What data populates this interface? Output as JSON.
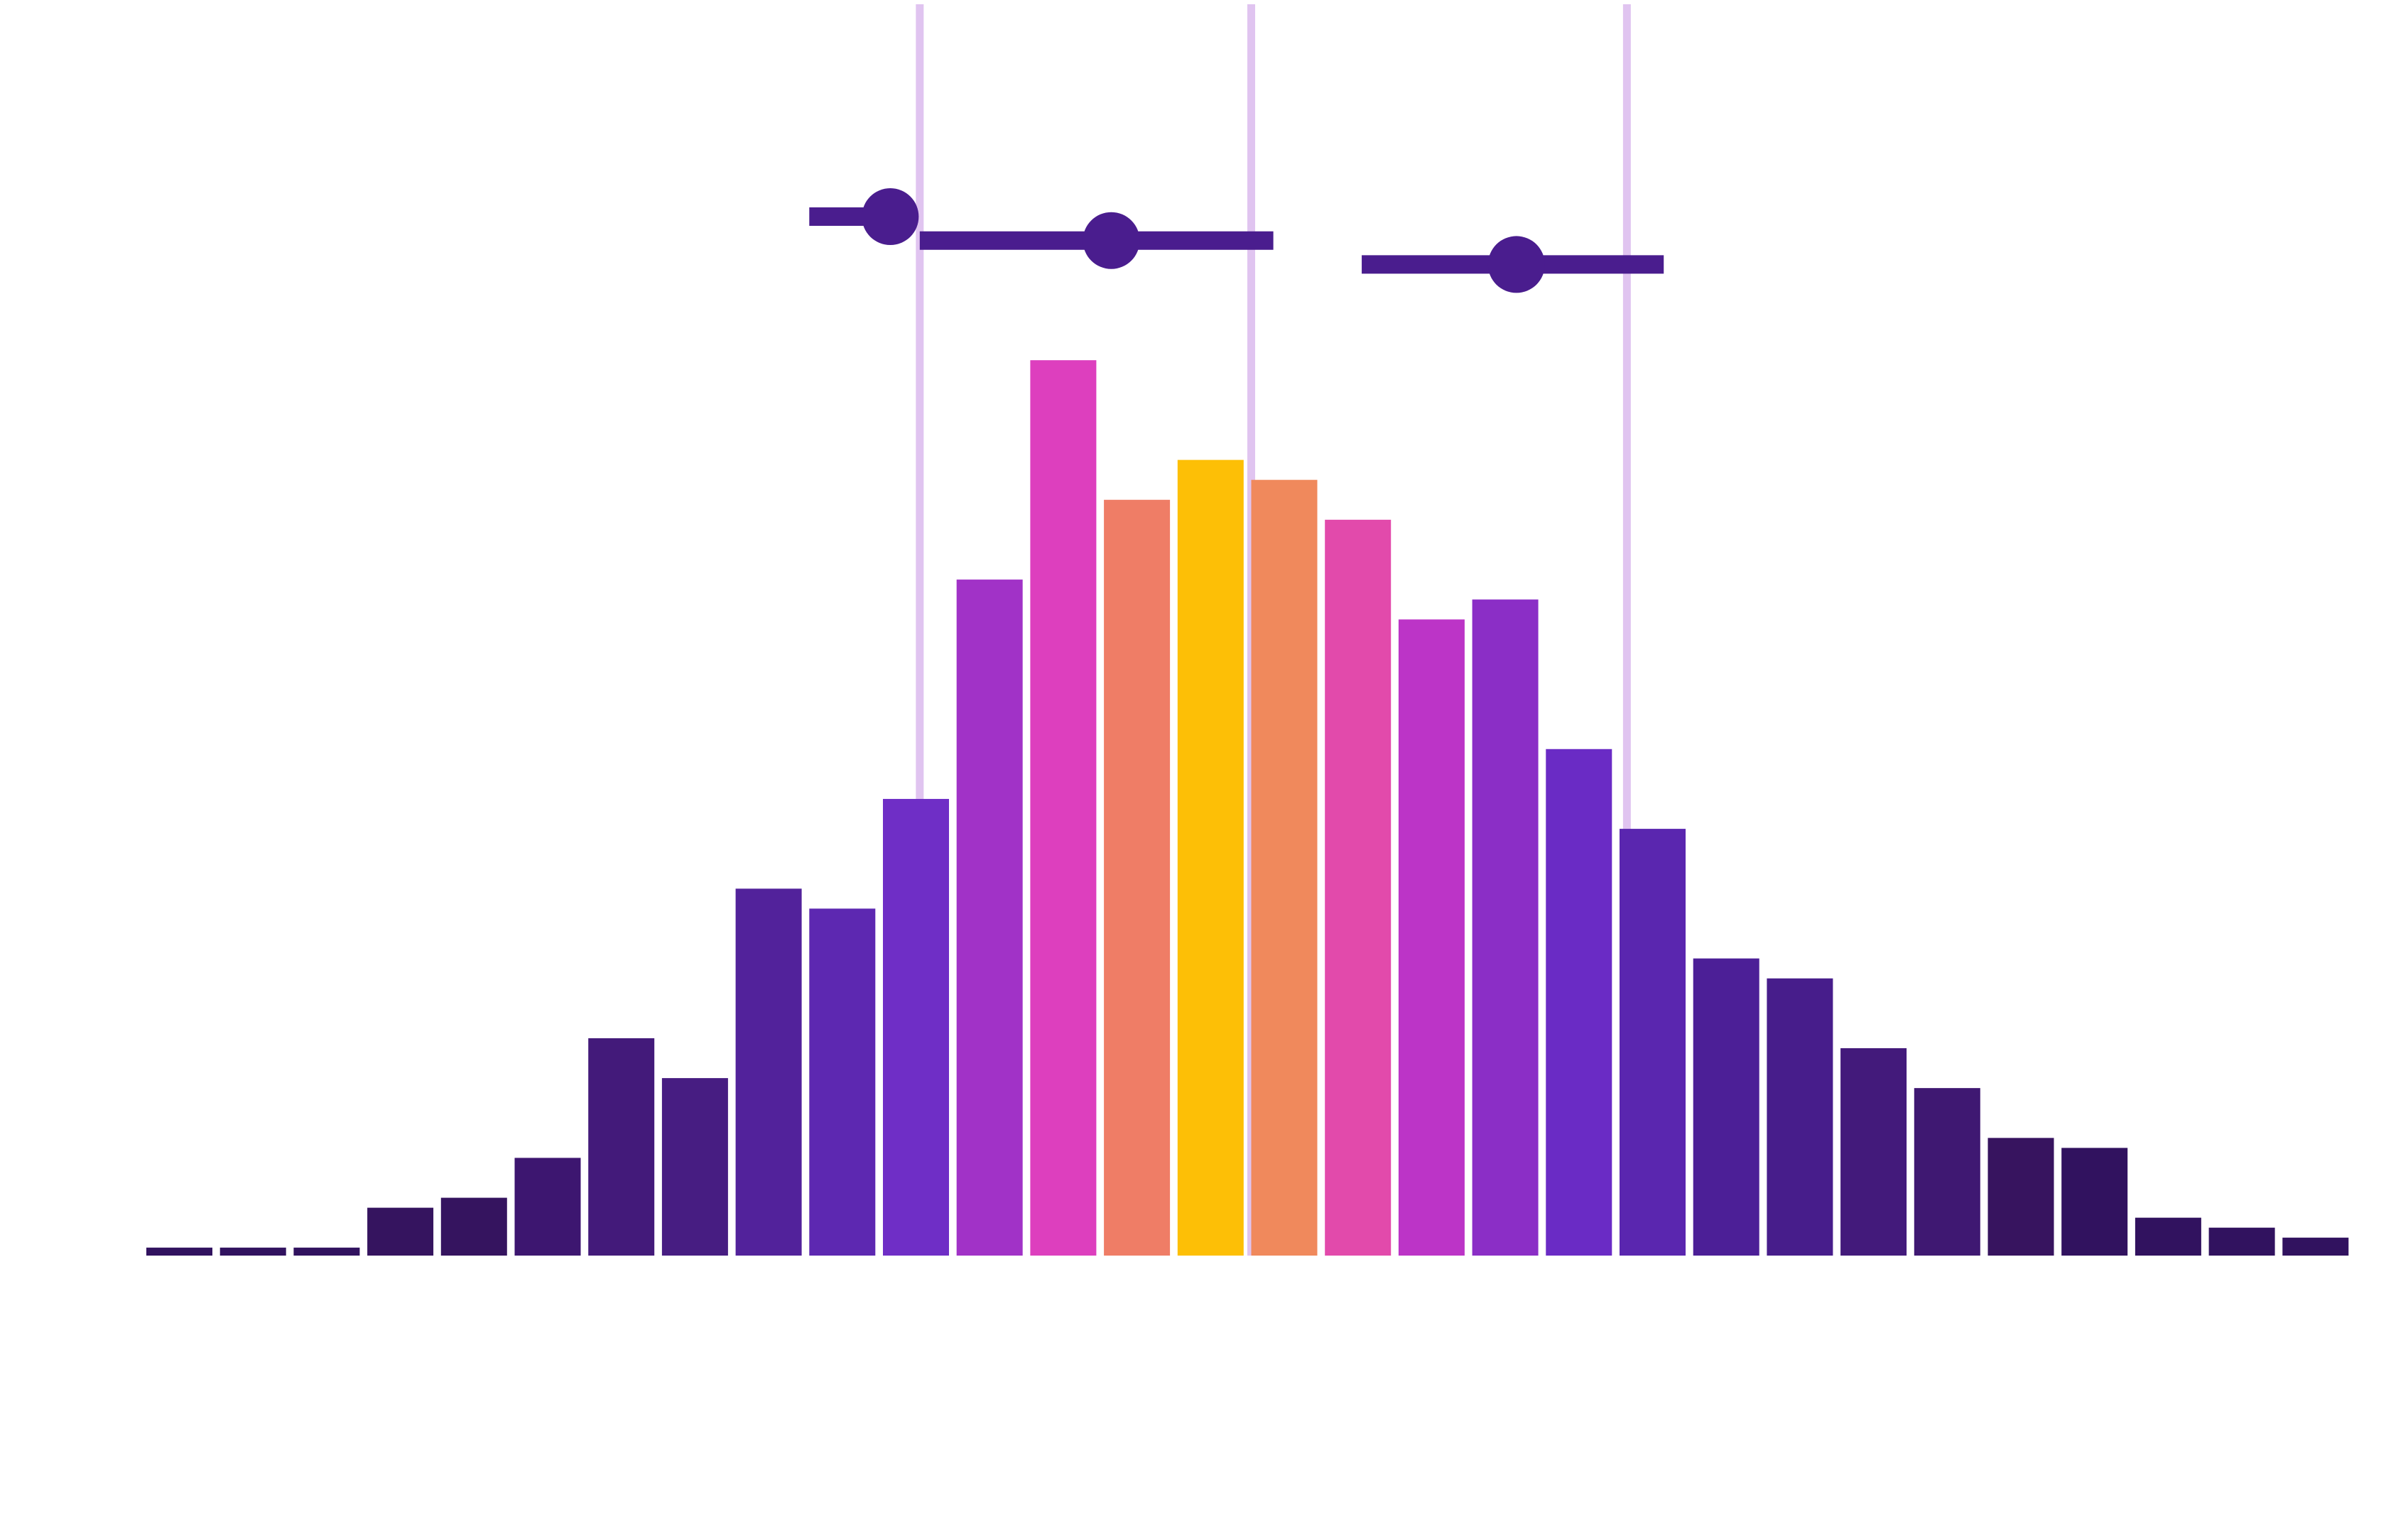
{
  "chart_data": {
    "type": "bar",
    "title": "",
    "xlabel": "",
    "ylabel": "",
    "grid": false,
    "legend": "none",
    "ylim": [
      0,
      1000
    ],
    "bars": {
      "values": [
        8,
        8,
        8,
        48,
        58,
        98,
        218,
        178,
        368,
        348,
        458,
        678,
        898,
        758,
        798,
        778,
        738,
        638,
        658,
        508,
        428,
        298,
        278,
        208,
        168,
        118,
        108,
        38,
        28,
        18
      ],
      "colors": [
        "#31125f",
        "#31125f",
        "#31125f",
        "#35145f",
        "#35145f",
        "#3d1670",
        "#431a7a",
        "#471d82",
        "#52229b",
        "#5d28b1",
        "#6f2ec6",
        "#a132c7",
        "#dd3fbe",
        "#ef7d66",
        "#fdbf06",
        "#f0895c",
        "#e24aab",
        "#bc34c7",
        "#8b2ec6",
        "#6a2bc5",
        "#5a26af",
        "#4c1f97",
        "#471d8b",
        "#431a7b",
        "#3f1872",
        "#37145f",
        "#31125f",
        "#31125f",
        "#31125f",
        "#31125f"
      ]
    },
    "reference_lines": {
      "color": "#e0c4f0",
      "x_bins": [
        10.5,
        15,
        20.1
      ]
    },
    "interval_estimates": [
      {
        "point": 10.1,
        "low": 9.0,
        "high": 10.4,
        "y": 1042,
        "color": "#4a1d8e"
      },
      {
        "point": 13.1,
        "low": 10.5,
        "high": 15.3,
        "y": 1018,
        "color": "#4a1d8e"
      },
      {
        "point": 18.6,
        "low": 16.5,
        "high": 20.6,
        "y": 994,
        "color": "#4a1d8e"
      }
    ]
  }
}
